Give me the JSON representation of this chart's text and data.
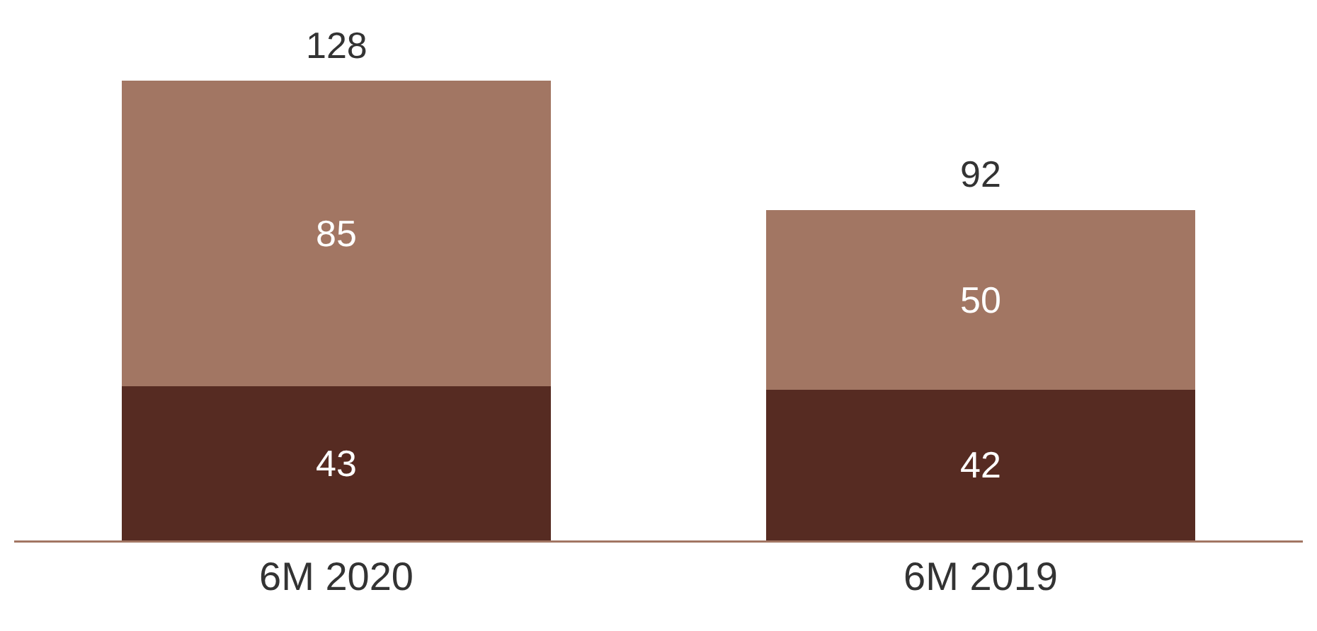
{
  "chart_data": {
    "type": "bar",
    "stacked": true,
    "categories": [
      "6M 2020",
      "6M 2019"
    ],
    "series": [
      {
        "color": "#562b22",
        "values": [
          43,
          42
        ]
      },
      {
        "color": "#a27663",
        "values": [
          85,
          50
        ]
      }
    ],
    "data_labels": true,
    "totals": [
      "128",
      "92"
    ],
    "grid": false
  }
}
